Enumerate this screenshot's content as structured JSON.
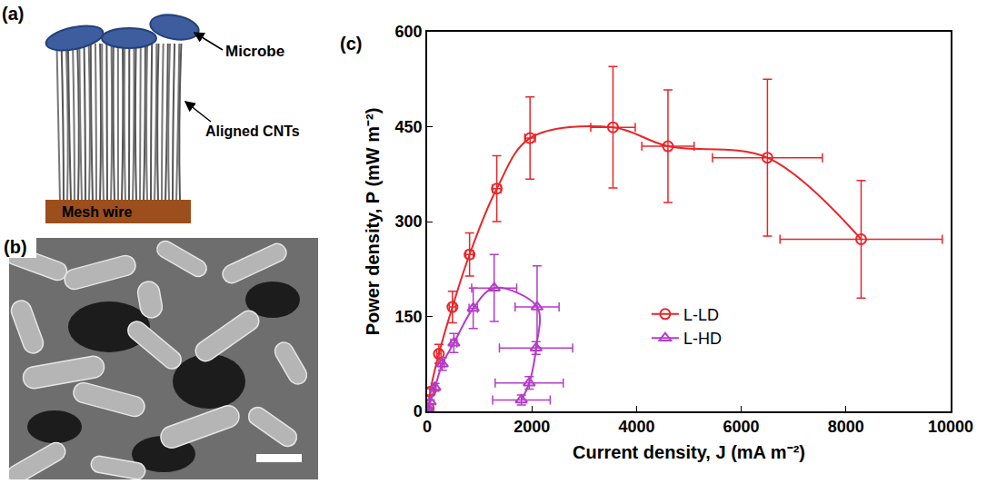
{
  "diagram": {
    "label": "(a)",
    "microbe": "Microbe",
    "cnts": "Aligned CNTs",
    "mesh": "Mesh wire"
  },
  "image": {
    "label": "(b)"
  },
  "chart_data": {
    "type": "scatter",
    "annotations": [
      "(c)"
    ],
    "x_label": "Current density, J (mA m⁻²)",
    "y_label": "Power density, P (mW m⁻²)",
    "xlim": [
      0,
      10000
    ],
    "xticks": [
      0,
      2000,
      4000,
      6000,
      8000,
      10000
    ],
    "ylim": [
      0,
      600
    ],
    "yticks": [
      0,
      150,
      300,
      450,
      600
    ],
    "grid": false,
    "legend": "lower center",
    "series": [
      {
        "name": "L-LD",
        "color": "#e8262a",
        "marker": "circle-open",
        "line_style": "solid",
        "x": [
          0,
          30,
          60,
          224,
          483,
          810,
          1330,
          1965,
          3550,
          4600,
          6500,
          8290
        ],
        "values": [
          0,
          5,
          31,
          91,
          165,
          248,
          352,
          432,
          449,
          419,
          401,
          272
        ],
        "error_x": [
          0,
          0,
          0,
          40,
          60,
          70,
          80,
          100,
          425,
          500,
          1050,
          1550
        ],
        "error_y": [
          0,
          0,
          5,
          15,
          25,
          34,
          52,
          65,
          96,
          89,
          124,
          93
        ]
      },
      {
        "name": "L-HD",
        "color": "#b43cc8",
        "marker": "triangle-up-open",
        "line_style": "solid",
        "x": [
          0,
          20,
          60,
          150,
          290,
          510,
          880,
          1280,
          2100,
          2080,
          1950,
          1800
        ],
        "values": [
          0,
          5,
          15,
          38,
          75,
          108,
          163,
          195,
          165,
          100,
          45,
          18
        ],
        "error_x": [
          0,
          0,
          0,
          20,
          40,
          60,
          80,
          430,
          420,
          700,
          650,
          550
        ],
        "error_y": [
          0,
          0,
          3,
          6,
          10,
          15,
          32,
          53,
          65,
          10,
          10,
          8
        ]
      }
    ]
  }
}
